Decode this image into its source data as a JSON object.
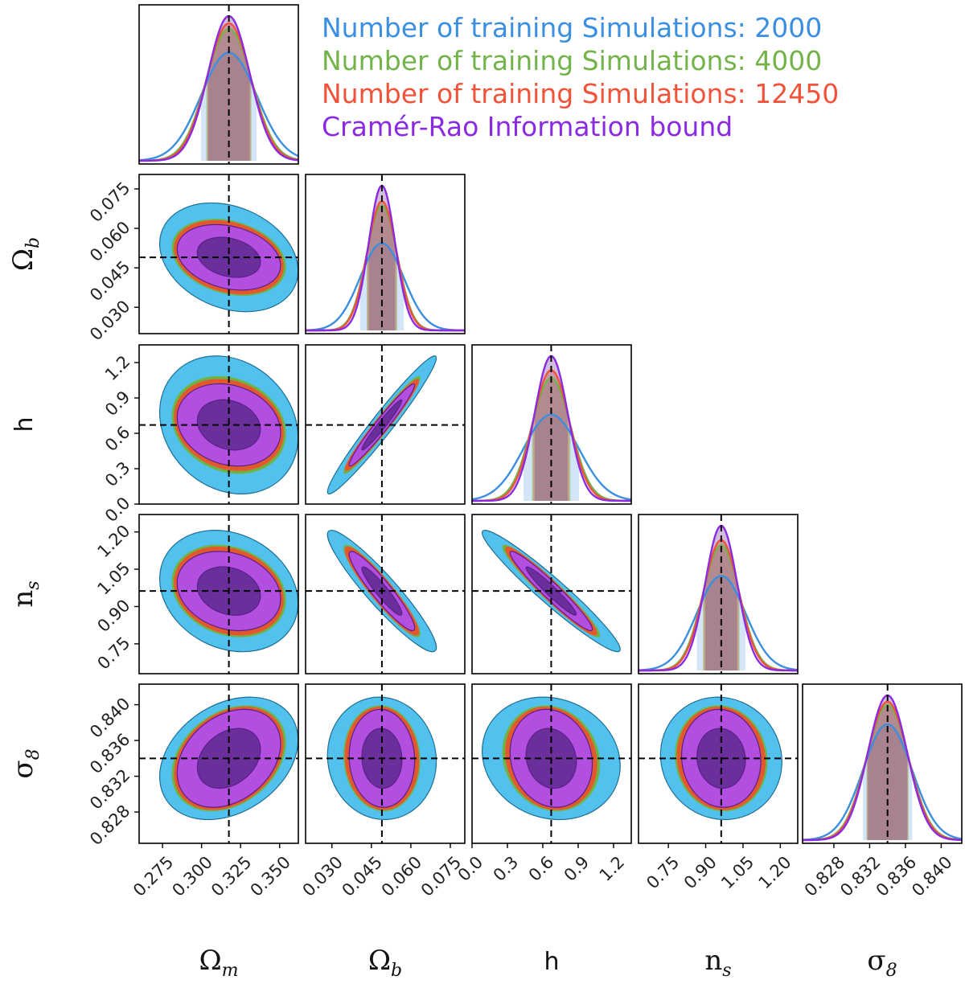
{
  "chart_data": {
    "type": "corner",
    "params": [
      {
        "key": "Om",
        "label_main": "Ω",
        "label_sub": "m",
        "truth": 0.3175,
        "lim": [
          0.26,
          0.362
        ],
        "ticks": [
          "0.275",
          "0.300",
          "0.325",
          "0.350"
        ],
        "tick_values": [
          0.275,
          0.3,
          0.325,
          0.35
        ]
      },
      {
        "key": "Ob",
        "label_main": "Ω",
        "label_sub": "b",
        "truth": 0.049,
        "lim": [
          0.02,
          0.0805
        ],
        "ticks": [
          "0.030",
          "0.045",
          "0.060",
          "0.075"
        ],
        "tick_values": [
          0.03,
          0.045,
          0.06,
          0.075
        ]
      },
      {
        "key": "h",
        "label_main": "h",
        "label_sub": "",
        "truth": 0.6711,
        "lim": [
          0.0,
          1.35
        ],
        "ticks": [
          "0.0",
          "0.3",
          "0.6",
          "0.9",
          "1.2"
        ],
        "tick_values": [
          0.0,
          0.3,
          0.6,
          0.9,
          1.2
        ]
      },
      {
        "key": "ns",
        "label_main": "n",
        "label_sub": "s",
        "truth": 0.9624,
        "lim": [
          0.63,
          1.27
        ],
        "ticks": [
          "0.75",
          "0.90",
          "1.05",
          "1.20"
        ],
        "tick_values": [
          0.75,
          0.9,
          1.05,
          1.2
        ]
      },
      {
        "key": "s8",
        "label_main": "σ",
        "label_sub": "8",
        "truth": 0.834,
        "lim": [
          0.8245,
          0.8423
        ],
        "ticks": [
          "0.828",
          "0.832",
          "0.836",
          "0.840"
        ],
        "tick_values": [
          0.828,
          0.832,
          0.836,
          0.84
        ]
      }
    ],
    "series": [
      {
        "name": "Number of training Simulations: 2000",
        "color": "#3b8fe0",
        "fill": "#4fc3ef",
        "sigma": [
          0.0178,
          0.0083,
          0.235,
          0.098,
          0.00275
        ]
      },
      {
        "name": "Number of training Simulations: 4000",
        "color": "#73b34a",
        "fill": "#6cb33f",
        "sigma": [
          0.0146,
          0.0058,
          0.165,
          0.074,
          0.00236
        ]
      },
      {
        "name": "Number of training Simulations: 12450",
        "color": "#f0533a",
        "fill": "#e0582b",
        "sigma": [
          0.014,
          0.0056,
          0.155,
          0.071,
          0.0023
        ]
      },
      {
        "name": "Cramér-Rao Information bound",
        "color": "#8a2be2",
        "fill": "#9b3fd1",
        "sigma": [
          0.0133,
          0.005,
          0.14,
          0.064,
          0.0022
        ]
      }
    ],
    "correlations": [
      [
        "Ob",
        "Om",
        -0.25
      ],
      [
        "h",
        "Om",
        -0.18
      ],
      [
        "h",
        "Ob",
        0.97
      ],
      [
        "ns",
        "Om",
        -0.2
      ],
      [
        "ns",
        "Ob",
        -0.93
      ],
      [
        "ns",
        "h",
        -0.96
      ],
      [
        "s8",
        "Om",
        0.3
      ],
      [
        "s8",
        "Ob",
        -0.05
      ],
      [
        "s8",
        "h",
        -0.12
      ],
      [
        "s8",
        "ns",
        -0.06
      ]
    ]
  }
}
